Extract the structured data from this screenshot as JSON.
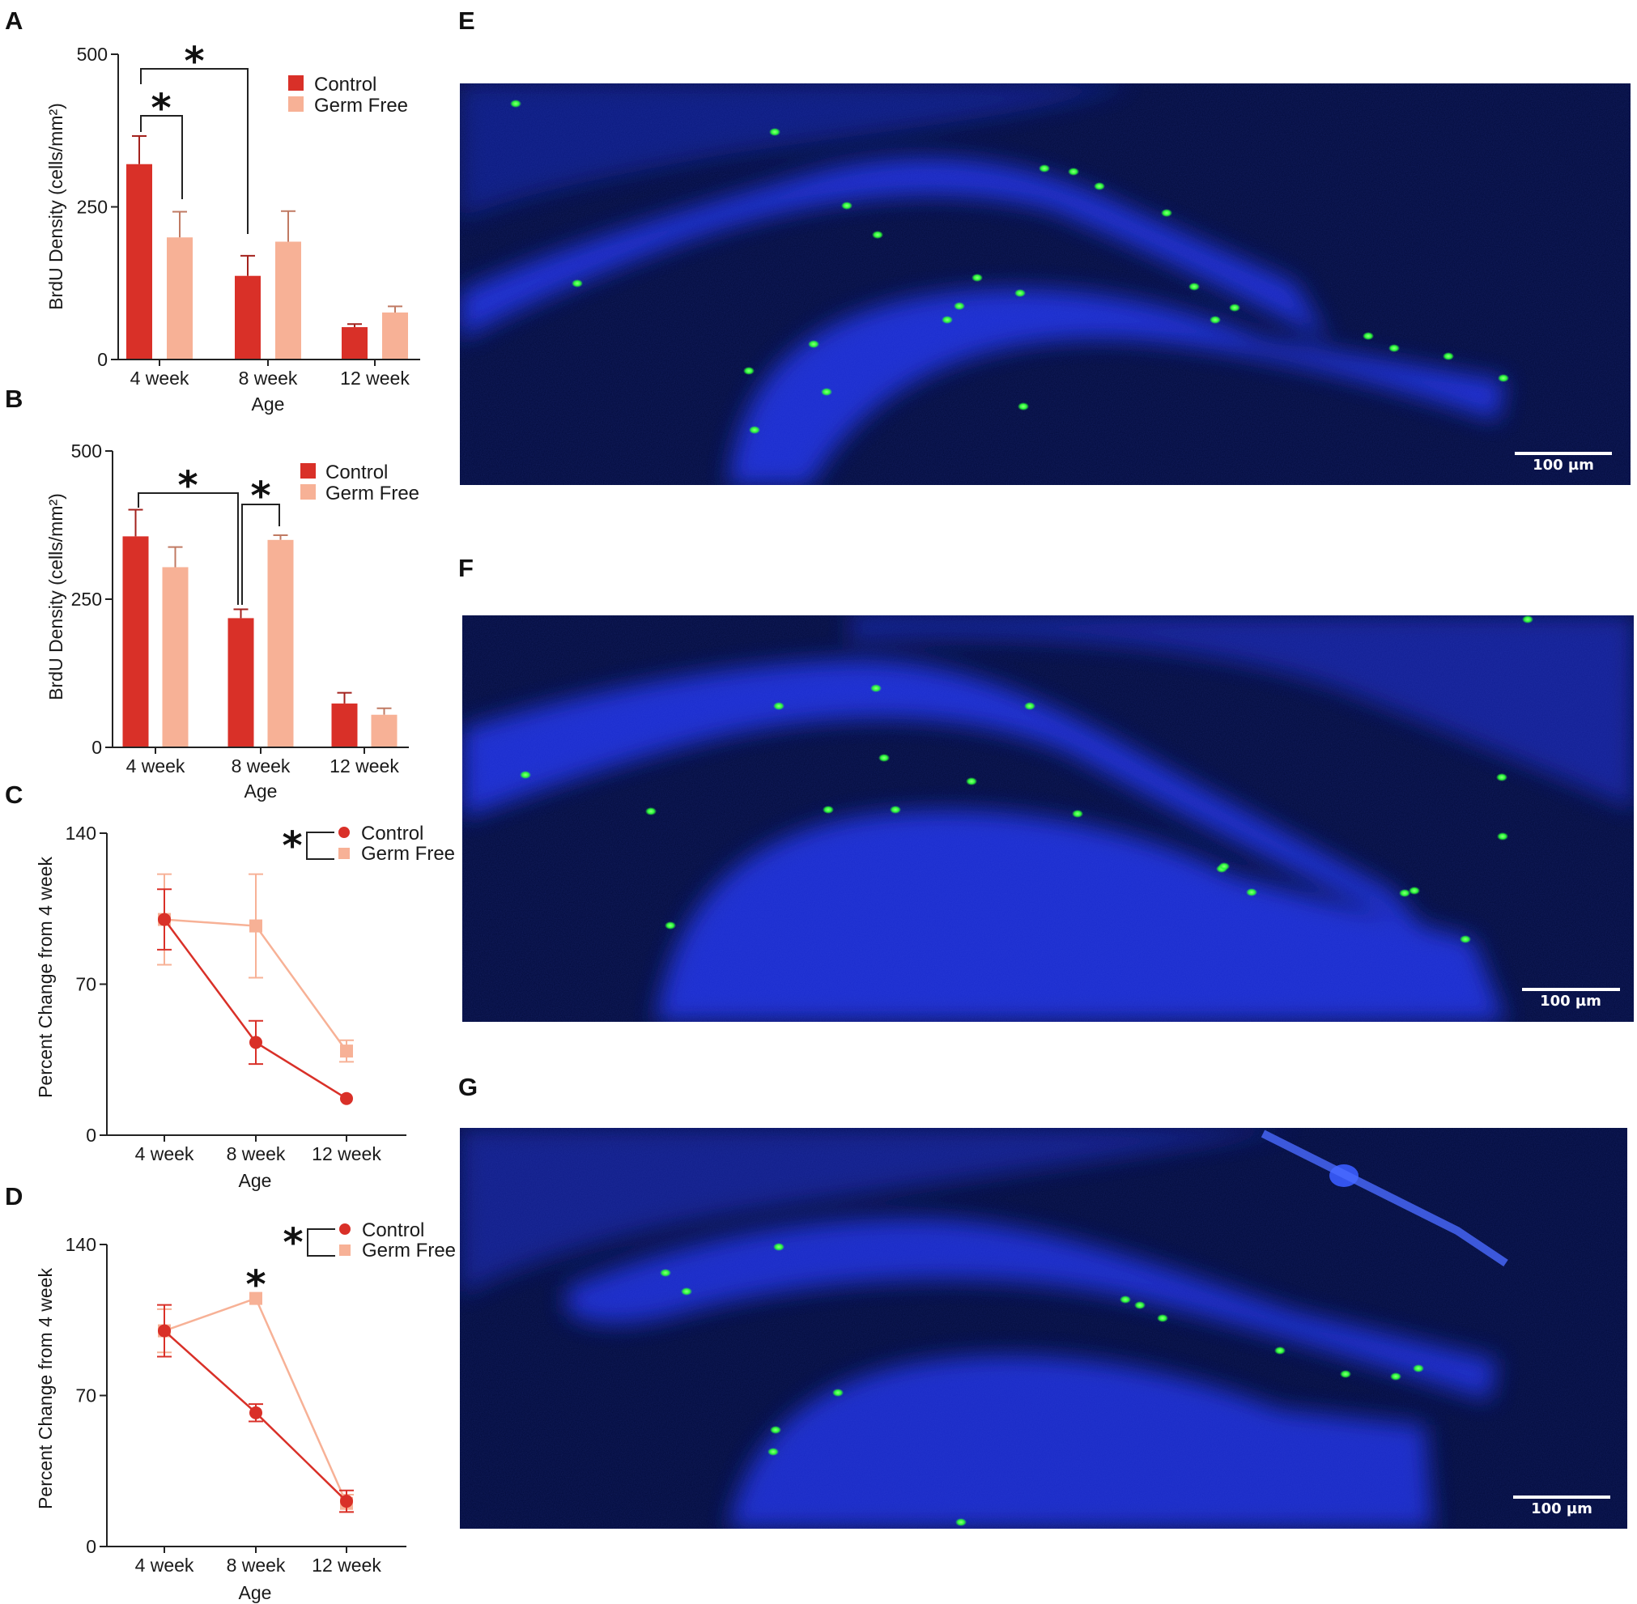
{
  "panels": {
    "A": "A",
    "B": "B",
    "C": "C",
    "D": "D",
    "E": "E",
    "F": "F",
    "G": "G"
  },
  "colors": {
    "control": "#d93028",
    "germ_free": "#f7b196",
    "micrograph_bg": "#020b3a",
    "nuclei": "#1c2fd6",
    "brdu": "#2cff38"
  },
  "chart_data": [
    {
      "id": "A",
      "type": "bar",
      "categories": [
        "4 week",
        "8 week",
        "12 week"
      ],
      "series": [
        {
          "name": "Control",
          "values": [
            320,
            137,
            53
          ],
          "errors": [
            46,
            33,
            5
          ]
        },
        {
          "name": "Germ Free",
          "values": [
            200,
            193,
            77
          ],
          "errors": [
            42,
            50,
            10
          ]
        }
      ],
      "xlabel": "Age",
      "ylabel": "BrdU Density (cells/mm²)",
      "ylim": [
        0,
        500
      ],
      "yticks": [
        0,
        250,
        500
      ],
      "legend": "top-right",
      "grid": false,
      "significance": [
        "*",
        "*"
      ]
    },
    {
      "id": "B",
      "type": "bar",
      "categories": [
        "4 week",
        "8 week",
        "12 week"
      ],
      "series": [
        {
          "name": "Control",
          "values": [
            356,
            218,
            74
          ],
          "errors": [
            45,
            15,
            18
          ]
        },
        {
          "name": "Germ Free",
          "values": [
            304,
            350,
            55
          ],
          "errors": [
            34,
            8,
            11
          ]
        }
      ],
      "xlabel": "Age",
      "ylabel": "BrdU Density (cells/mm²)",
      "ylim": [
        0,
        500
      ],
      "yticks": [
        0,
        250,
        500
      ],
      "legend": "top-right",
      "grid": false,
      "significance": [
        "*",
        "*"
      ]
    },
    {
      "id": "C",
      "type": "line",
      "categories": [
        "4 week",
        "8 week",
        "12 week"
      ],
      "series": [
        {
          "name": "Control",
          "values": [
            100,
            43,
            17
          ],
          "errors": [
            14,
            10,
            0
          ]
        },
        {
          "name": "Germ Free",
          "values": [
            100,
            97,
            39
          ],
          "errors": [
            21,
            24,
            5
          ]
        }
      ],
      "xlabel": "Age",
      "ylabel": "Percent Change from 4 week",
      "ylim": [
        0,
        140
      ],
      "yticks": [
        0,
        70,
        140
      ],
      "legend": "top-right",
      "grid": false,
      "significance": [
        "*"
      ]
    },
    {
      "id": "D",
      "type": "line",
      "categories": [
        "4 week",
        "8 week",
        "12 week"
      ],
      "series": [
        {
          "name": "Control",
          "values": [
            100,
            62,
            21
          ],
          "errors": [
            12,
            4,
            5
          ]
        },
        {
          "name": "Germ Free",
          "values": [
            100,
            115,
            20
          ],
          "errors": [
            10,
            0,
            4
          ]
        }
      ],
      "xlabel": "Age",
      "ylabel": "Percent Change from 4 week",
      "ylim": [
        0,
        140
      ],
      "yticks": [
        0,
        70,
        140
      ],
      "legend": "top-right",
      "grid": false,
      "significance": [
        "*",
        "*"
      ]
    }
  ],
  "micrographs": [
    {
      "id": "E",
      "scale_bar": "100 µm"
    },
    {
      "id": "F",
      "scale_bar": "100 µm"
    },
    {
      "id": "G",
      "scale_bar": "100 µm"
    }
  ]
}
